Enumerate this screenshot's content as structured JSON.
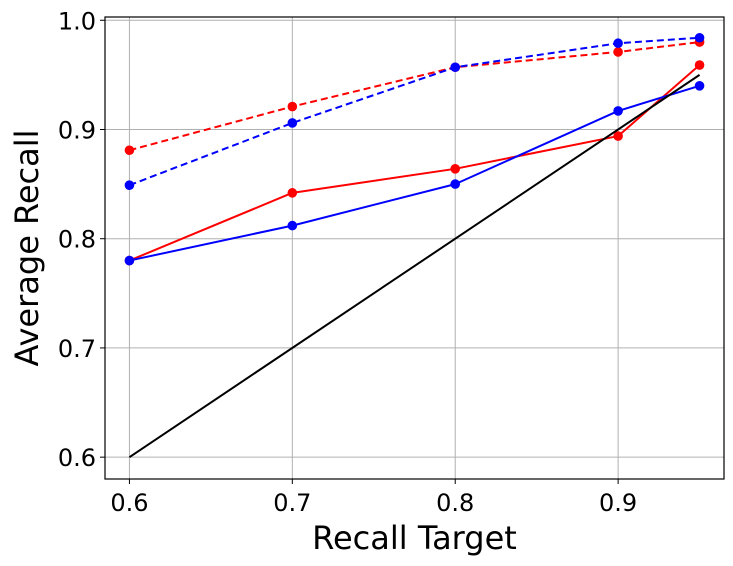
{
  "chart_data": {
    "type": "line",
    "xlabel": "Recall Target",
    "ylabel": "Average Recall",
    "xlim": [
      0.585,
      0.965
    ],
    "ylim": [
      0.58,
      1.003
    ],
    "xticks": [
      "0.6",
      "0.7",
      "0.8",
      "0.9"
    ],
    "yticks": [
      "0.6",
      "0.7",
      "0.8",
      "0.9",
      "1.0"
    ],
    "grid": true,
    "series": [
      {
        "color": "#ff0000",
        "style": "dashed",
        "marker": "circle",
        "x": [
          0.6,
          0.7,
          0.8,
          0.9,
          0.95
        ],
        "y": [
          0.881,
          0.921,
          0.957,
          0.971,
          0.98
        ]
      },
      {
        "color": "#0000ff",
        "style": "dashed",
        "marker": "circle",
        "x": [
          0.6,
          0.7,
          0.8,
          0.9,
          0.95
        ],
        "y": [
          0.849,
          0.906,
          0.957,
          0.979,
          0.984
        ]
      },
      {
        "color": "#ff0000",
        "style": "solid",
        "marker": "circle",
        "x": [
          0.6,
          0.7,
          0.8,
          0.9,
          0.95
        ],
        "y": [
          0.78,
          0.842,
          0.864,
          0.894,
          0.959
        ]
      },
      {
        "color": "#0000ff",
        "style": "solid",
        "marker": "circle",
        "x": [
          0.6,
          0.7,
          0.8,
          0.9,
          0.95
        ],
        "y": [
          0.78,
          0.812,
          0.85,
          0.917,
          0.94
        ]
      },
      {
        "color": "#000000",
        "style": "solid",
        "marker": "none",
        "x": [
          0.6,
          0.95
        ],
        "y": [
          0.6,
          0.95
        ]
      }
    ]
  }
}
